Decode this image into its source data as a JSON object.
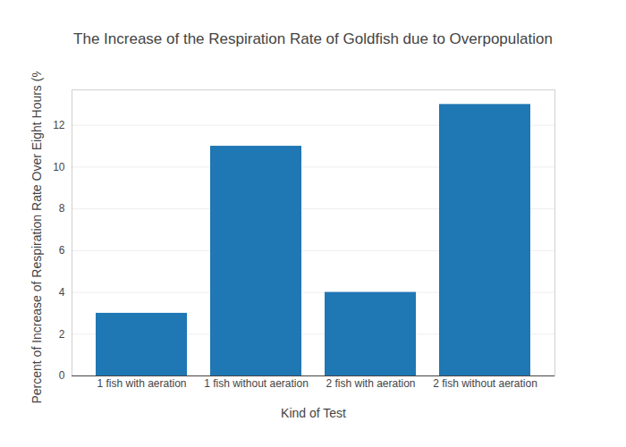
{
  "chart_data": {
    "type": "bar",
    "title": "The Increase of the Respiration Rate of Goldfish due to Overpopulation",
    "x_label": "Kind of Test",
    "y_label": "Percent of Increase of Respiration Rate Over Eight Hours (%)",
    "categories": [
      "1 fish with aeration",
      "1 fish without aeration",
      "2 fish with aeration",
      "2 fish without aeration"
    ],
    "values": [
      3,
      11,
      4,
      13
    ],
    "color": "#1f77b4",
    "ylim": [
      0,
      13.7
    ],
    "yticks": [
      0,
      2,
      4,
      6,
      8,
      10,
      12
    ],
    "grid": true
  }
}
